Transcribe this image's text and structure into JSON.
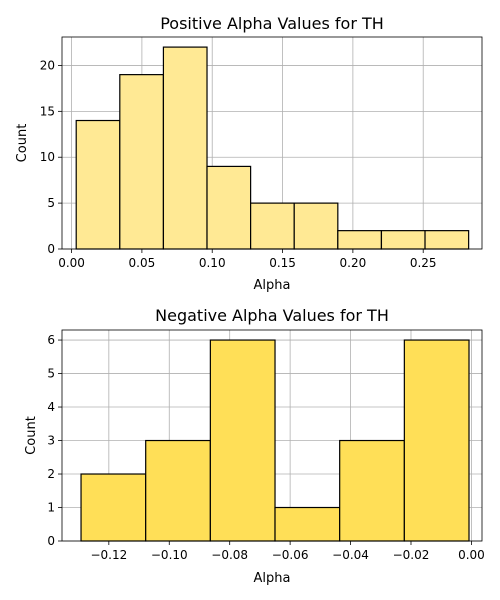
{
  "chart_data": [
    {
      "type": "bar",
      "title": "Positive Alpha Values for TH",
      "xlabel": "Alpha",
      "ylabel": "Count",
      "bar_color": "#ffe994",
      "xlim": [
        -0.0068,
        0.2918
      ],
      "ylim": [
        0,
        23.1
      ],
      "x_ticks": [
        0.0,
        0.05,
        0.1,
        0.15,
        0.2,
        0.25
      ],
      "x_tick_labels": [
        "0.00",
        "0.05",
        "0.10",
        "0.15",
        "0.20",
        "0.25"
      ],
      "y_ticks": [
        0,
        5,
        10,
        15,
        20
      ],
      "y_tick_labels": [
        "0",
        "5",
        "10",
        "15",
        "20"
      ],
      "grid": true,
      "bins": [
        {
          "x0": 0.0033,
          "x1": 0.0343,
          "count": 14
        },
        {
          "x0": 0.0343,
          "x1": 0.0653,
          "count": 19
        },
        {
          "x0": 0.0653,
          "x1": 0.0963,
          "count": 22
        },
        {
          "x0": 0.0963,
          "x1": 0.1273,
          "count": 9
        },
        {
          "x0": 0.1273,
          "x1": 0.1583,
          "count": 5
        },
        {
          "x0": 0.1583,
          "x1": 0.1893,
          "count": 5
        },
        {
          "x0": 0.1893,
          "x1": 0.2203,
          "count": 2
        },
        {
          "x0": 0.2203,
          "x1": 0.2513,
          "count": 2
        },
        {
          "x0": 0.2513,
          "x1": 0.2823,
          "count": 2
        }
      ]
    },
    {
      "type": "bar",
      "title": "Negative Alpha Values for TH",
      "xlabel": "Alpha",
      "ylabel": "Count",
      "bar_color": "#ffdf57",
      "xlim": [
        -0.1355,
        0.0035
      ],
      "ylim": [
        0,
        6.3
      ],
      "x_ticks": [
        -0.12,
        -0.1,
        -0.08,
        -0.06,
        -0.04,
        -0.02,
        0.0
      ],
      "x_tick_labels": [
        "−0.12",
        "−0.10",
        "−0.08",
        "−0.06",
        "−0.04",
        "−0.02",
        "0.00"
      ],
      "y_ticks": [
        0,
        1,
        2,
        3,
        4,
        5,
        6
      ],
      "y_tick_labels": [
        "0",
        "1",
        "2",
        "3",
        "4",
        "5",
        "6"
      ],
      "grid": true,
      "bins": [
        {
          "x0": -0.1292,
          "x1": -0.1078,
          "count": 2
        },
        {
          "x0": -0.1078,
          "x1": -0.0864,
          "count": 3
        },
        {
          "x0": -0.0864,
          "x1": -0.065,
          "count": 6
        },
        {
          "x0": -0.065,
          "x1": -0.0436,
          "count": 1
        },
        {
          "x0": -0.0436,
          "x1": -0.0222,
          "count": 3
        },
        {
          "x0": -0.0222,
          "x1": -0.0008,
          "count": 6
        }
      ]
    }
  ]
}
